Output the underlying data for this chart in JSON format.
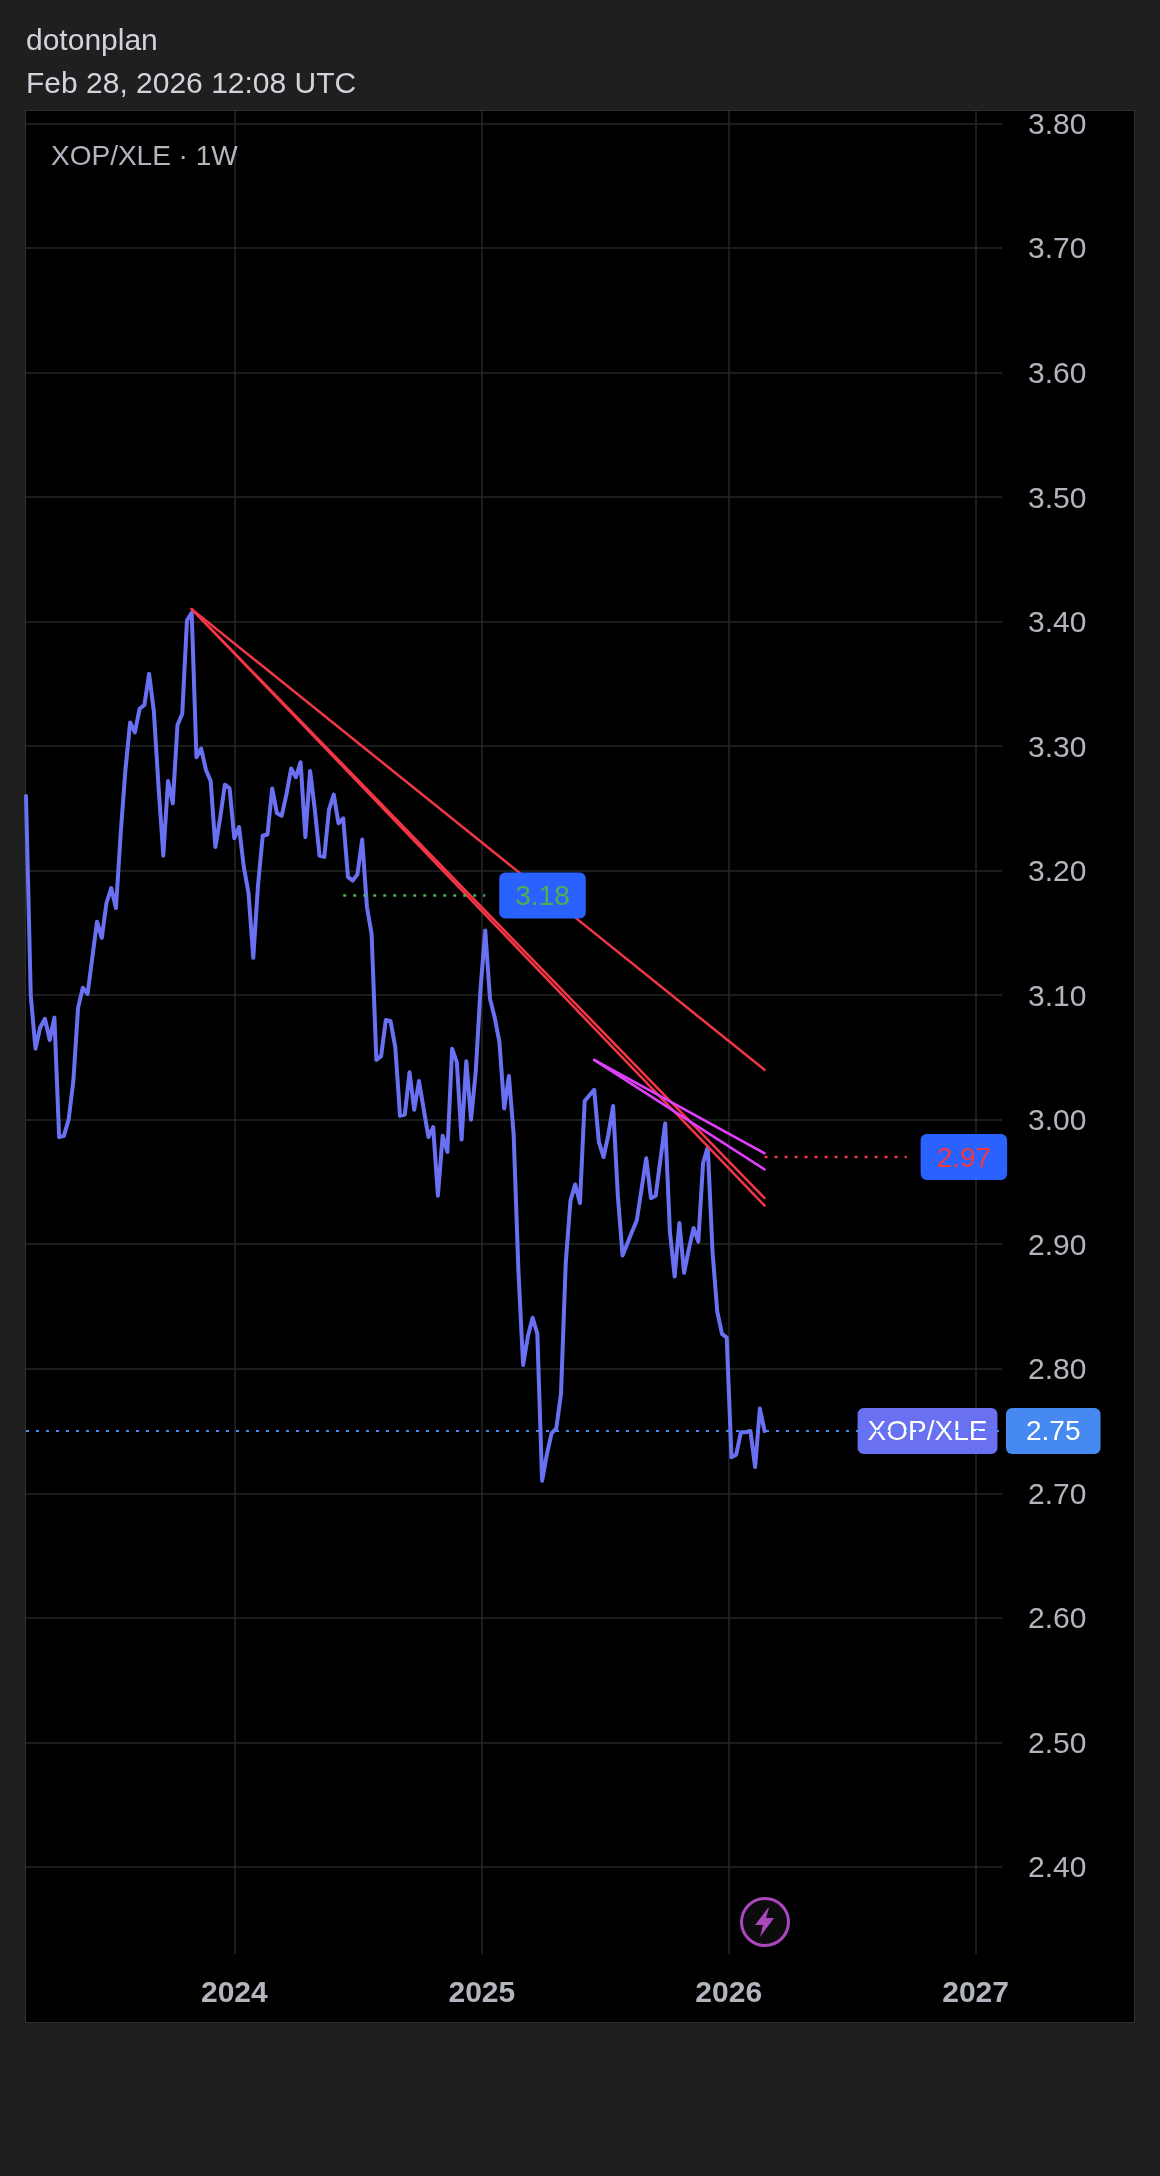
{
  "chart_data": {
    "type": "line",
    "title": "XOP/XLE · 1W",
    "annotations": [
      "dotonplan",
      "Feb 28, 2026 12:08 UTC"
    ],
    "xlim": [
      "2023-02-27",
      "2027-02-09"
    ],
    "xticks": [
      "2024",
      "2025",
      "2026",
      "2027"
    ],
    "ylim": [
      2.33,
      3.81
    ],
    "yticks": [
      {
        "value": 2.4,
        "label": "2.40"
      },
      {
        "value": 2.5,
        "label": "2.50"
      },
      {
        "value": 2.6,
        "label": "2.60"
      },
      {
        "value": 2.7,
        "label": "2.70"
      },
      {
        "value": 2.8,
        "label": "2.80"
      },
      {
        "value": 2.9,
        "label": "2.90"
      },
      {
        "value": 3.0,
        "label": "3.00"
      },
      {
        "value": 3.1,
        "label": "3.10"
      },
      {
        "value": 3.2,
        "label": "3.20"
      },
      {
        "value": 3.3,
        "label": "3.30"
      },
      {
        "value": 3.4,
        "label": "3.40"
      },
      {
        "value": 3.5,
        "label": "3.50"
      },
      {
        "value": 3.6,
        "label": "3.60"
      },
      {
        "value": 3.7,
        "label": "3.70"
      },
      {
        "value": 3.8,
        "label": "3.80"
      }
    ],
    "grid": true,
    "ref_lines": [
      {
        "axis": "y",
        "value": 2.75,
        "label": "2.75",
        "color": "#4689f0",
        "line_style": "dotted"
      }
    ],
    "series": [
      {
        "name": "XOP/XLE",
        "color": "#6a70f2",
        "x": [
          "2023-02-27",
          "2023-03-06",
          "2023-03-13",
          "2023-03-20",
          "2023-03-27",
          "2023-04-03",
          "2023-04-10",
          "2023-04-17",
          "2023-04-24",
          "2023-05-01",
          "2023-05-08",
          "2023-05-15",
          "2023-05-22",
          "2023-05-29",
          "2023-06-05",
          "2023-06-12",
          "2023-06-19",
          "2023-06-26",
          "2023-07-03",
          "2023-07-10",
          "2023-07-17",
          "2023-07-24",
          "2023-07-31",
          "2023-08-07",
          "2023-08-14",
          "2023-08-21",
          "2023-08-28",
          "2023-09-04",
          "2023-09-11",
          "2023-09-18",
          "2023-09-25",
          "2023-10-02",
          "2023-10-09",
          "2023-10-16",
          "2023-10-23",
          "2023-10-30",
          "2023-11-06",
          "2023-11-13",
          "2023-11-20",
          "2023-11-27",
          "2023-12-04",
          "2023-12-11",
          "2023-12-18",
          "2023-12-25",
          "2024-01-01",
          "2024-01-08",
          "2024-01-15",
          "2024-01-22",
          "2024-01-29",
          "2024-02-05",
          "2024-02-12",
          "2024-02-19",
          "2024-02-26",
          "2024-03-04",
          "2024-03-11",
          "2024-03-18",
          "2024-03-25",
          "2024-04-01",
          "2024-04-08",
          "2024-04-15",
          "2024-04-22",
          "2024-04-29",
          "2024-05-06",
          "2024-05-13",
          "2024-05-20",
          "2024-05-27",
          "2024-06-03",
          "2024-06-10",
          "2024-06-17",
          "2024-06-24",
          "2024-07-01",
          "2024-07-08",
          "2024-07-15",
          "2024-07-22",
          "2024-07-29",
          "2024-08-05",
          "2024-08-12",
          "2024-08-19",
          "2024-08-26",
          "2024-09-02",
          "2024-09-09",
          "2024-09-16",
          "2024-09-23",
          "2024-09-30",
          "2024-10-14",
          "2024-10-21",
          "2024-10-28",
          "2024-11-04",
          "2024-11-11",
          "2024-11-18",
          "2024-11-25",
          "2024-12-02",
          "2024-12-09",
          "2024-12-16",
          "2024-12-23",
          "2024-12-30",
          "2025-01-06",
          "2025-01-13",
          "2025-01-20",
          "2025-01-27",
          "2025-02-03",
          "2025-02-10",
          "2025-02-17",
          "2025-02-24",
          "2025-03-03",
          "2025-03-10",
          "2025-03-17",
          "2025-03-24",
          "2025-03-31",
          "2025-04-07",
          "2025-04-14",
          "2025-04-21",
          "2025-04-28",
          "2025-05-05",
          "2025-05-12",
          "2025-05-19",
          "2025-05-26",
          "2025-06-02",
          "2025-06-16",
          "2025-06-23",
          "2025-06-30",
          "2025-07-07",
          "2025-07-14",
          "2025-07-21",
          "2025-07-28",
          "2025-08-11",
          "2025-08-18",
          "2025-09-01",
          "2025-09-08",
          "2025-09-15",
          "2025-09-29",
          "2025-10-06",
          "2025-10-13",
          "2025-10-20",
          "2025-10-27",
          "2025-11-03",
          "2025-11-10",
          "2025-11-17",
          "2025-11-24",
          "2025-12-01",
          "2025-12-08",
          "2025-12-15",
          "2025-12-22",
          "2025-12-29",
          "2026-01-05",
          "2026-01-12",
          "2026-01-19",
          "2026-01-26",
          "2026-02-02",
          "2026-02-09",
          "2026-02-16",
          "2026-02-23"
        ],
        "values": [
          3.26,
          3.1,
          3.057,
          3.074,
          3.081,
          3.064,
          3.082,
          2.986,
          2.987,
          3.0,
          3.031,
          3.09,
          3.106,
          3.101,
          3.13,
          3.159,
          3.146,
          3.174,
          3.186,
          3.17,
          3.23,
          3.281,
          3.319,
          3.311,
          3.33,
          3.333,
          3.358,
          3.328,
          3.267,
          3.212,
          3.272,
          3.254,
          3.317,
          3.326,
          3.401,
          3.407,
          3.291,
          3.298,
          3.281,
          3.272,
          3.219,
          3.242,
          3.269,
          3.266,
          3.226,
          3.235,
          3.203,
          3.182,
          3.13,
          3.188,
          3.228,
          3.229,
          3.266,
          3.246,
          3.244,
          3.261,
          3.282,
          3.275,
          3.287,
          3.227,
          3.28,
          3.249,
          3.212,
          3.211,
          3.249,
          3.261,
          3.238,
          3.242,
          3.195,
          3.192,
          3.197,
          3.225,
          3.171,
          3.149,
          3.048,
          3.051,
          3.08,
          3.079,
          3.058,
          3.003,
          3.004,
          3.038,
          3.008,
          3.031,
          2.986,
          2.994,
          2.939,
          2.987,
          2.974,
          3.057,
          3.046,
          2.984,
          3.047,
          3.0,
          3.039,
          3.105,
          3.152,
          3.097,
          3.082,
          3.062,
          3.009,
          3.035,
          2.988,
          2.879,
          2.803,
          2.826,
          2.841,
          2.828,
          2.71,
          2.731,
          2.748,
          2.752,
          2.78,
          2.885,
          2.935,
          2.948,
          2.933,
          3.015,
          3.024,
          2.982,
          2.97,
          2.988,
          3.011,
          2.939,
          2.891,
          2.91,
          2.919,
          2.969,
          2.937,
          2.939,
          2.997,
          2.91,
          2.874,
          2.917,
          2.877,
          2.896,
          2.913,
          2.902,
          2.965,
          2.978,
          2.894,
          2.846,
          2.828,
          2.825,
          2.729,
          2.731,
          2.749,
          2.749,
          2.75,
          2.721,
          2.768,
          2.75
        ]
      },
      {
        "type": "line",
        "color": "#f23645",
        "x": [
          "2023-10-30",
          "2026-02-23"
        ],
        "values": [
          3.41,
          3.04
        ]
      },
      {
        "type": "line",
        "color": "#f23645",
        "x": [
          "2023-10-30",
          "2026-02-23"
        ],
        "values": [
          3.41,
          2.937
        ]
      },
      {
        "type": "line",
        "color": "#f23645",
        "x": [
          "2023-10-30",
          "2026-02-23"
        ],
        "values": [
          3.41,
          2.931
        ]
      },
      {
        "type": "line",
        "color": "#e040fb",
        "x": [
          "2025-06-16",
          "2026-02-23"
        ],
        "values": [
          3.048,
          2.973
        ]
      },
      {
        "type": "line",
        "color": "#e040fb",
        "x": [
          "2025-06-16",
          "2026-02-23"
        ],
        "values": [
          3.048,
          2.96
        ]
      },
      {
        "type": "line",
        "color": "#4caf50",
        "line_style": "dotted",
        "x": [
          "2024-06-10",
          "2025-01-06"
        ],
        "values": [
          3.18,
          3.18
        ],
        "value_labels": [
          null,
          "3.18"
        ]
      },
      {
        "type": "line",
        "color": "#f23645",
        "line_style": "dotted",
        "x": [
          "2026-02-23",
          "2026-09-21"
        ],
        "values": [
          2.97,
          2.97
        ],
        "value_labels": [
          null,
          "2.97"
        ]
      }
    ]
  }
}
